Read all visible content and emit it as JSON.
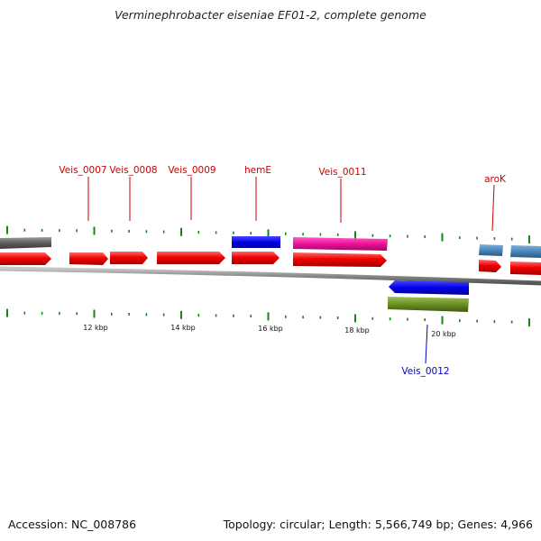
{
  "title": "Verminephrobacter eiseniae EF01-2, complete genome",
  "footer": {
    "accession": "Accession: NC_008786",
    "summary": "Topology: circular; Length: 5,566,749 bp; Genes: 4,966"
  },
  "colors": {
    "cds": "#ff0000",
    "gray_feature": "#666666",
    "hemE": "#0000ee",
    "pink": "#ee1199",
    "steel": "#4a86b8",
    "olive": "#6b8e23",
    "ticks": "#118811",
    "upper_label": "#cc0000",
    "lower_label": "#0000cc"
  },
  "scale_labels": [
    "12 kbp",
    "14 kbp",
    "16 kbp",
    "18 kbp",
    "20 kbp"
  ],
  "gene_labels_above": [
    "Veis_0007",
    "Veis_0008",
    "Veis_0009",
    "hemE",
    "Veis_0011",
    "aroK"
  ],
  "gene_labels_below": [
    "Veis_0012"
  ]
}
